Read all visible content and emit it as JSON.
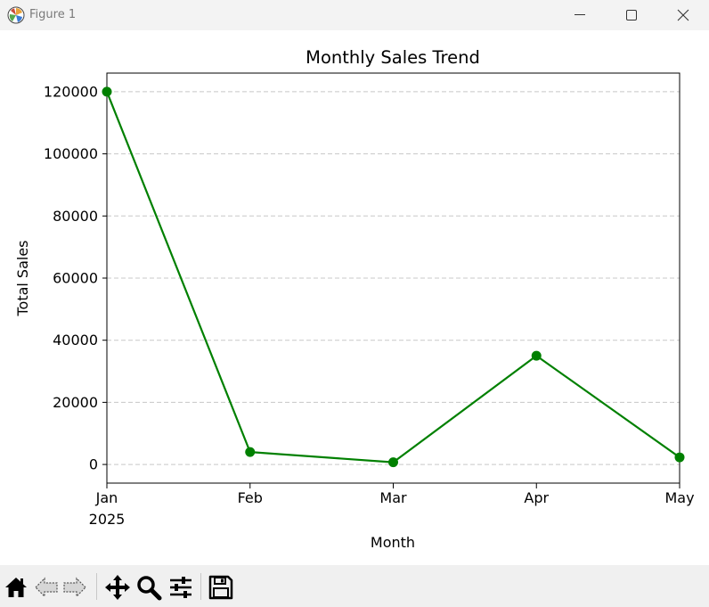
{
  "window": {
    "title": "Figure 1",
    "icons": {
      "app": "matplotlib-figure-icon",
      "minimize": "minimize-icon",
      "maximize": "maximize-icon",
      "close": "close-icon"
    }
  },
  "chart_data": {
    "type": "line",
    "title": "Monthly Sales Trend",
    "xlabel": "Month",
    "ylabel": "Total Sales",
    "categories": [
      "Jan",
      "Feb",
      "Mar",
      "Apr",
      "May"
    ],
    "x_sub_labels": [
      "2025",
      "",
      "",
      "",
      ""
    ],
    "values": [
      120000,
      4000,
      700,
      35000,
      2300
    ],
    "yticks": [
      0,
      20000,
      40000,
      60000,
      80000,
      100000,
      120000
    ],
    "ylim": [
      -6000,
      126000
    ],
    "grid": "y-dashed",
    "line_color": "#008000",
    "marker": "circle"
  },
  "toolbar": {
    "items": [
      {
        "name": "home-icon"
      },
      {
        "name": "back-arrow-icon"
      },
      {
        "name": "forward-arrow-icon"
      },
      {
        "name": "pan-move-icon"
      },
      {
        "name": "zoom-magnifier-icon"
      },
      {
        "name": "subplots-sliders-icon"
      },
      {
        "name": "save-floppy-icon"
      }
    ]
  }
}
